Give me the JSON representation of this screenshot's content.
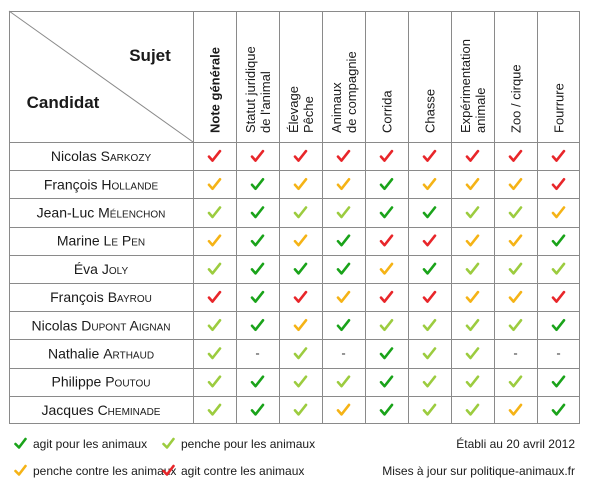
{
  "corner": {
    "subject_label": "Sujet",
    "candidate_label": "Candidat"
  },
  "columns": [
    {
      "lines": [
        "Note générale"
      ],
      "bold": true
    },
    {
      "lines": [
        "Statut juridique",
        "de l'animal"
      ]
    },
    {
      "lines": [
        "Élevage",
        "Pêche"
      ]
    },
    {
      "lines": [
        "Animaux",
        "de compagnie"
      ]
    },
    {
      "lines": [
        "Corrida"
      ]
    },
    {
      "lines": [
        "Chasse"
      ]
    },
    {
      "lines": [
        "Expérimentation",
        "animale"
      ]
    },
    {
      "lines": [
        "Zoo / cirque"
      ]
    },
    {
      "lines": [
        "Fourrure"
      ]
    }
  ],
  "candidates": [
    {
      "first": "Nicolas",
      "last": "Sarkozy",
      "ratings": [
        "R",
        "R",
        "R",
        "R",
        "R",
        "R",
        "R",
        "R",
        "R"
      ]
    },
    {
      "first": "François",
      "last": "Hollande",
      "ratings": [
        "O",
        "G",
        "O",
        "O",
        "G",
        "O",
        "O",
        "O",
        "R"
      ]
    },
    {
      "first": "Jean-Luc",
      "last": "Mélenchon",
      "ratings": [
        "L",
        "G",
        "L",
        "L",
        "G",
        "G",
        "L",
        "L",
        "O"
      ]
    },
    {
      "first": "Marine",
      "last": "Le Pen",
      "ratings": [
        "O",
        "G",
        "O",
        "G",
        "R",
        "R",
        "O",
        "O",
        "G"
      ]
    },
    {
      "first": "Éva",
      "last": "Joly",
      "ratings": [
        "L",
        "G",
        "G",
        "G",
        "O",
        "G",
        "L",
        "L",
        "L"
      ]
    },
    {
      "first": "François",
      "last": "Bayrou",
      "ratings": [
        "R",
        "G",
        "R",
        "O",
        "R",
        "R",
        "O",
        "O",
        "R"
      ]
    },
    {
      "first": "Nicolas",
      "last": "Dupont Aignan",
      "ratings": [
        "L",
        "G",
        "O",
        "G",
        "L",
        "L",
        "L",
        "L",
        "G"
      ]
    },
    {
      "first": "Nathalie",
      "last": "Arthaud",
      "ratings": [
        "L",
        "-",
        "L",
        "-",
        "G",
        "L",
        "L",
        "-",
        "-"
      ]
    },
    {
      "first": "Philippe",
      "last": "Poutou",
      "ratings": [
        "L",
        "G",
        "L",
        "L",
        "G",
        "L",
        "L",
        "L",
        "G"
      ]
    },
    {
      "first": "Jacques",
      "last": "Cheminade",
      "ratings": [
        "L",
        "G",
        "L",
        "O",
        "G",
        "L",
        "L",
        "O",
        "G"
      ]
    }
  ],
  "dash_symbol": "-",
  "colors": {
    "G": "#1aa31a",
    "L": "#9ccc3f",
    "O": "#f5b316",
    "R": "#e8262a",
    "grid": "#8a8a8a"
  },
  "legend": {
    "G": "agit pour les animaux",
    "L": "penche pour les animaux",
    "O": "penche contre les animaux",
    "R": "agit contre les animaux"
  },
  "footer": {
    "date": "Établi au 20 avril 2012",
    "update": "Mises à jour sur politique-animaux.fr"
  }
}
